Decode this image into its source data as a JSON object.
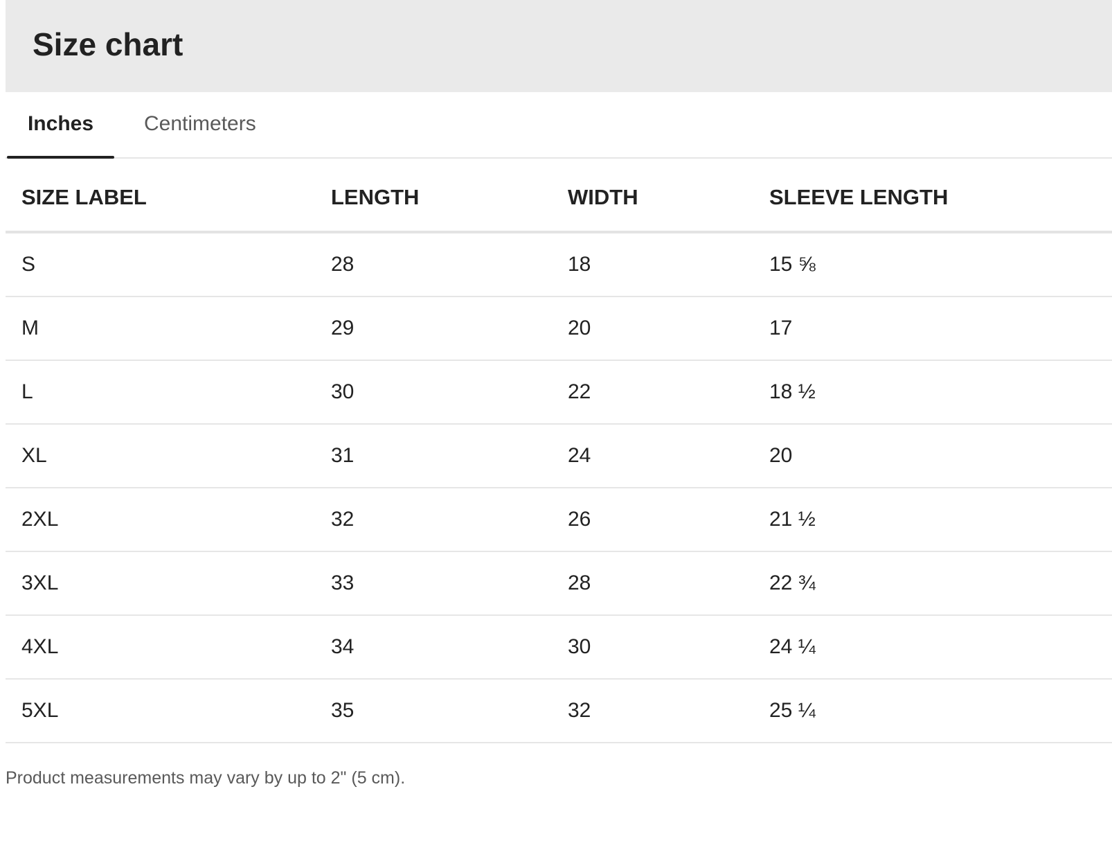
{
  "header": {
    "title": "Size chart"
  },
  "tabs": [
    {
      "label": "Inches",
      "active": true
    },
    {
      "label": "Centimeters",
      "active": false
    }
  ],
  "table": {
    "columns": [
      "SIZE LABEL",
      "LENGTH",
      "WIDTH",
      "SLEEVE LENGTH"
    ],
    "rows": [
      [
        "S",
        "28",
        "18",
        "15 ⅝"
      ],
      [
        "M",
        "29",
        "20",
        "17"
      ],
      [
        "L",
        "30",
        "22",
        "18 ½"
      ],
      [
        "XL",
        "31",
        "24",
        "20"
      ],
      [
        "2XL",
        "32",
        "26",
        "21 ½"
      ],
      [
        "3XL",
        "33",
        "28",
        "22 ¾"
      ],
      [
        "4XL",
        "34",
        "30",
        "24 ¼"
      ],
      [
        "5XL",
        "35",
        "32",
        "25 ¼"
      ]
    ]
  },
  "footer": {
    "note": "Product measurements may vary by up to 2\" (5 cm)."
  },
  "colors": {
    "header_bg": "#eaeaea",
    "text": "#222222",
    "muted_text": "#595959",
    "divider": "#e6e6e6"
  }
}
